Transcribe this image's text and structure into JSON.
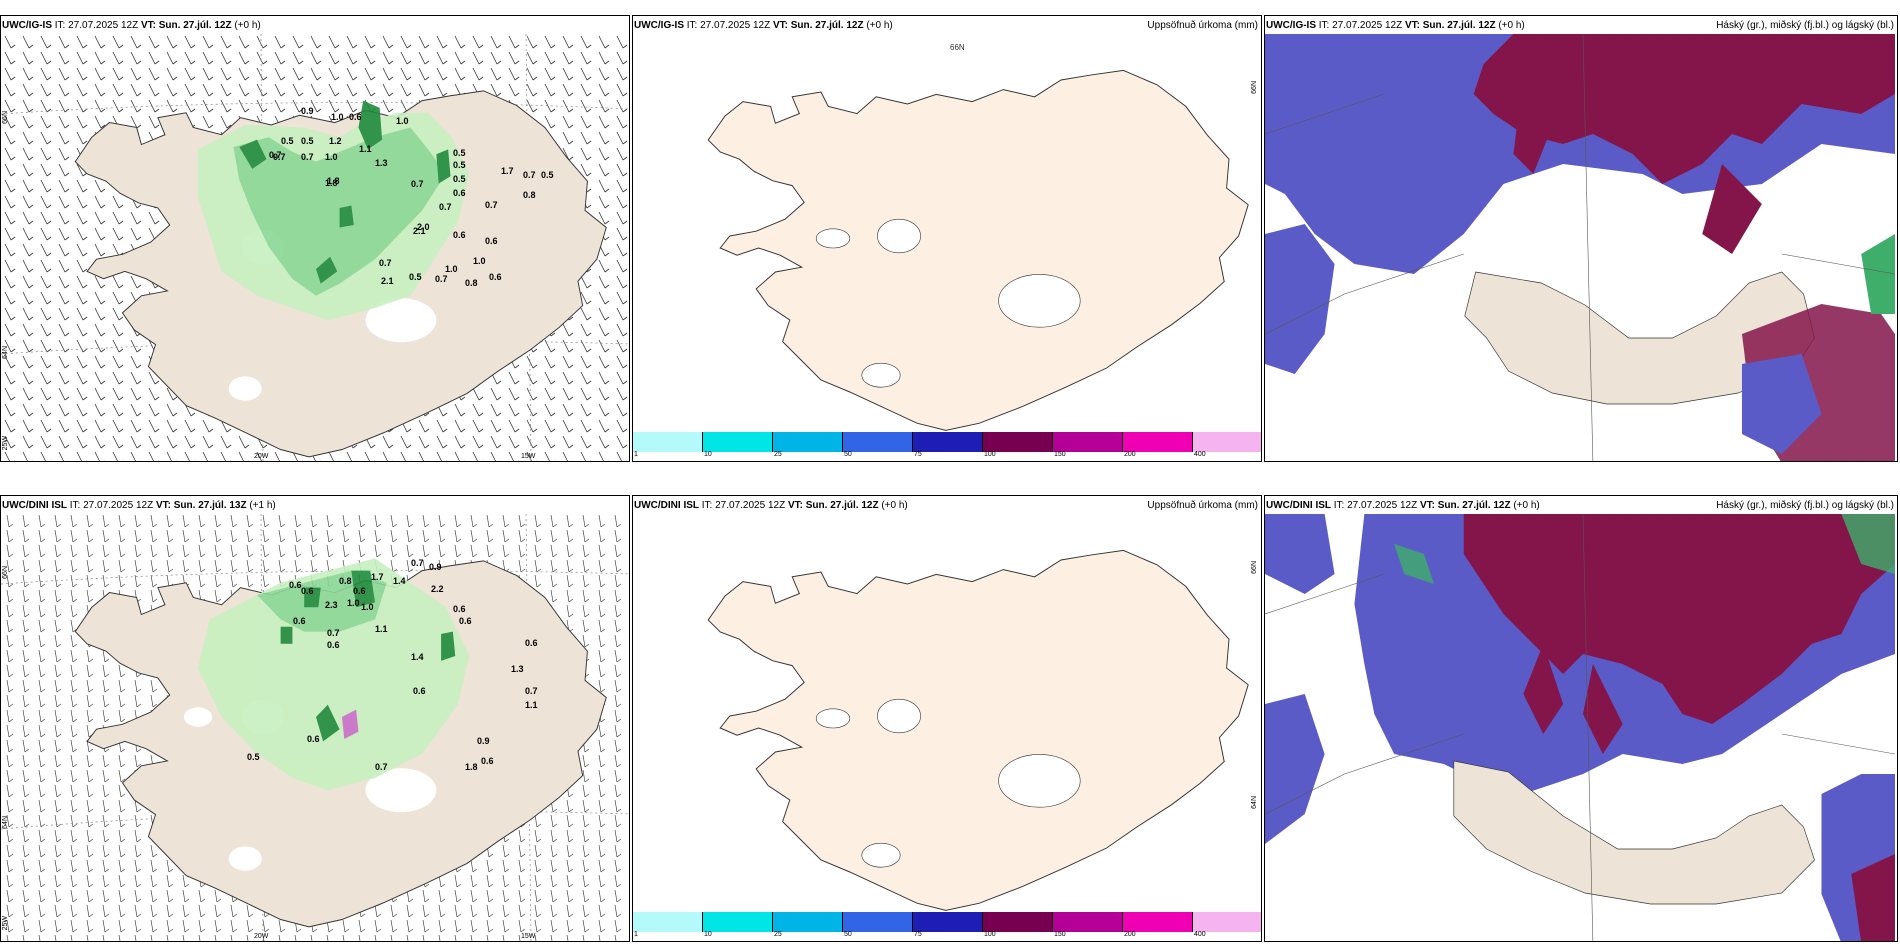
{
  "panels": [
    {
      "id": "p1",
      "model": "UWC/IG-IS",
      "it_label": "IT:",
      "it_time": "27.07.2025 12Z",
      "vt_label": "VT:",
      "vt_time": "Sun. 27.júl. 12Z",
      "lead": "(+0 h)",
      "right_title": "",
      "type": "precip-wind"
    },
    {
      "id": "p2",
      "model": "UWC/IG-IS",
      "it_label": "IT:",
      "it_time": "27.07.2025 12Z",
      "vt_label": "VT:",
      "vt_time": "Sun. 27.júl. 12Z",
      "lead": "(+0 h)",
      "right_title": "Uppsöfnuð úrkoma (mm)",
      "type": "accum"
    },
    {
      "id": "p3",
      "model": "UWC/IG-IS",
      "it_label": "IT:",
      "it_time": "27.07.2025 12Z",
      "vt_label": "VT:",
      "vt_time": "Sun. 27.júl. 12Z",
      "lead": "(+0 h)",
      "right_title": "Háský (gr.), miðský (fj.bl.) og lágský (bl.)",
      "type": "cloud"
    },
    {
      "id": "p4",
      "model": "UWC/DINI ISL",
      "it_label": "IT:",
      "it_time": "27.07.2025 12Z",
      "vt_label": "VT:",
      "vt_time": "Sun. 27.júl. 13Z",
      "lead": "(+1 h)",
      "right_title": "",
      "type": "precip-wind"
    },
    {
      "id": "p5",
      "model": "UWC/DINI ISL",
      "it_label": "IT:",
      "it_time": "27.07.2025 12Z",
      "vt_label": "VT:",
      "vt_time": "Sun. 27.júl. 12Z",
      "lead": "(+0 h)",
      "right_title": "Uppsöfnuð úrkoma (mm)",
      "type": "accum"
    },
    {
      "id": "p6",
      "model": "UWC/DINI ISL",
      "it_label": "IT:",
      "it_time": "27.07.2025 12Z",
      "vt_label": "VT:",
      "vt_time": "Sun. 27.júl. 12Z",
      "lead": "(+0 h)",
      "right_title": "Háský (gr.), miðský (fj.bl.) og lágský (bl.)",
      "type": "cloud"
    }
  ],
  "coords": {
    "lon_20": "20W",
    "lon_15": "15W",
    "lon_25": "25W",
    "lat_66": "66N",
    "lat_64": "64N"
  },
  "colorbar": {
    "labels": [
      "1",
      "10",
      "25",
      "50",
      "75",
      "100",
      "150",
      "200",
      "400"
    ],
    "colors": [
      "#b4fafa",
      "#00e6e6",
      "#00b4e6",
      "#3264e6",
      "#1e1eb4",
      "#780050",
      "#b40096",
      "#f000b4",
      "#f5b4f0"
    ]
  },
  "precip_values_p1": [
    "0.9",
    "1.0",
    "0.6",
    "1.0",
    "0.5",
    "0.5",
    "0.7",
    "1.2",
    "0.7",
    "1.1",
    "0.5",
    "0.7",
    "1.0",
    "1.3",
    "1.8",
    "0.7",
    "0.5",
    "0.5",
    "0.7",
    "0.7",
    "0.6",
    "0.7",
    "0.6",
    "2.1",
    "1.7",
    "0.8",
    "0.5",
    "0.5",
    "1.0",
    "0.8",
    "0.6",
    "0.7",
    "0.7",
    "1.0",
    "1.8",
    "0.6",
    "2.0",
    "2.1"
  ],
  "precip_values_p4": [
    "0.6",
    "0.6",
    "0.8",
    "0.6",
    "1.7",
    "1.4",
    "0.7",
    "0.9",
    "2.2",
    "2.3",
    "1.0",
    "1.0",
    "1.1",
    "0.6",
    "0.6",
    "0.7",
    "0.6",
    "0.6",
    "1.4",
    "0.6",
    "1.3",
    "0.6",
    "0.7",
    "1.1",
    "0.5",
    "0.6",
    "0.9",
    "0.6",
    "1.8",
    "0.7"
  ],
  "colors": {
    "land": "#ede3d6",
    "land_accum": "#fdf0e2",
    "precip_light": "#c8f0c0",
    "precip_mid": "#7dd08a",
    "precip_dark": "#1e8c3c",
    "cloud_high": "#84154a",
    "cloud_mid": "#5b5bc8",
    "cloud_low": "#5a6adc"
  }
}
